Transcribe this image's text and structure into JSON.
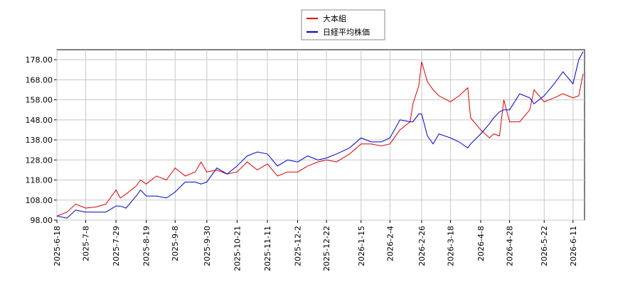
{
  "chart_data": {
    "type": "line",
    "x": [
      "2025-6-18",
      "2025-6-25",
      "2025-7-1",
      "2025-7-8",
      "2025-7-15",
      "2025-7-22",
      "2025-7-29",
      "2025-8-1",
      "2025-8-5",
      "2025-8-12",
      "2025-8-15",
      "2025-8-19",
      "2025-8-26",
      "2025-9-2",
      "2025-9-8",
      "2025-9-15",
      "2025-9-22",
      "2025-9-26",
      "2025-9-30",
      "2025-10-7",
      "2025-10-14",
      "2025-10-21",
      "2025-10-28",
      "2025-11-4",
      "2025-11-11",
      "2025-11-18",
      "2025-11-25",
      "2025-12-2",
      "2025-12-9",
      "2025-12-16",
      "2025-12-22",
      "2025-12-29",
      "2026-1-7",
      "2026-1-15",
      "2026-1-22",
      "2026-1-29",
      "2026-2-4",
      "2026-2-11",
      "2026-2-18",
      "2026-2-20",
      "2026-2-24",
      "2026-2-26",
      "2026-3-2",
      "2026-3-6",
      "2026-3-10",
      "2026-3-18",
      "2026-3-24",
      "2026-3-30",
      "2026-4-1",
      "2026-4-8",
      "2026-4-14",
      "2026-4-17",
      "2026-4-21",
      "2026-4-24",
      "2026-4-28",
      "2026-5-5",
      "2026-5-12",
      "2026-5-15",
      "2026-5-22",
      "2026-5-29",
      "2026-6-4",
      "2026-6-11",
      "2026-6-15",
      "2026-6-18"
    ],
    "series": [
      {
        "name": "大本組",
        "color": "#dd0000",
        "values": [
          100,
          102,
          106,
          104,
          104.5,
          106,
          113,
          109,
          111,
          115,
          118,
          116,
          120,
          118,
          124,
          120,
          122,
          127,
          122,
          123,
          121,
          122,
          127,
          123,
          126,
          120,
          122,
          122,
          125,
          127,
          128,
          127,
          131,
          136,
          136,
          135,
          136,
          143,
          147,
          156,
          165,
          177,
          167,
          163,
          160,
          157,
          160,
          164,
          149,
          143,
          139,
          141,
          140,
          158,
          147,
          147,
          153,
          163,
          157,
          159,
          161,
          159,
          160,
          171
        ]
      },
      {
        "name": "日経平均株価",
        "color": "#0000cc",
        "values": [
          100,
          99,
          103,
          102,
          102,
          102,
          105,
          105,
          104,
          110,
          113,
          110,
          110,
          109,
          112,
          117,
          117,
          116,
          117,
          124,
          121,
          125,
          130,
          132,
          131,
          125,
          128,
          127,
          130,
          128,
          129,
          131,
          134,
          139,
          137,
          137,
          139,
          148,
          147,
          147,
          151,
          151,
          140,
          136,
          141,
          139,
          137,
          134,
          136,
          141,
          146,
          149,
          152,
          153,
          153,
          161,
          159,
          156,
          160,
          166,
          172,
          166,
          178,
          182
        ]
      }
    ],
    "xlim": [
      "2025-6-18",
      "2026-6-19"
    ],
    "xticks": [
      "2025-6-18",
      "2025-7-8",
      "2025-7-29",
      "2025-8-19",
      "2025-9-8",
      "2025-9-30",
      "2025-10-21",
      "2025-11-11",
      "2025-12-2",
      "2025-12-22",
      "2026-1-15",
      "2026-2-4",
      "2026-2-26",
      "2026-3-18",
      "2026-4-8",
      "2026-4-28",
      "2026-5-22",
      "2026-6-11"
    ],
    "ylim": [
      98,
      183
    ],
    "yticks": [
      {
        "value": 98,
        "label": "98.00"
      },
      {
        "value": 108,
        "label": "108.00"
      },
      {
        "value": 118,
        "label": "118.00"
      },
      {
        "value": 128,
        "label": "128.00"
      },
      {
        "value": 138,
        "label": "138.00"
      },
      {
        "value": 148,
        "label": "148.00"
      },
      {
        "value": 158,
        "label": "158.00"
      },
      {
        "value": 168,
        "label": "168.00"
      },
      {
        "value": 178,
        "label": "178.00"
      }
    ],
    "grid": true
  }
}
